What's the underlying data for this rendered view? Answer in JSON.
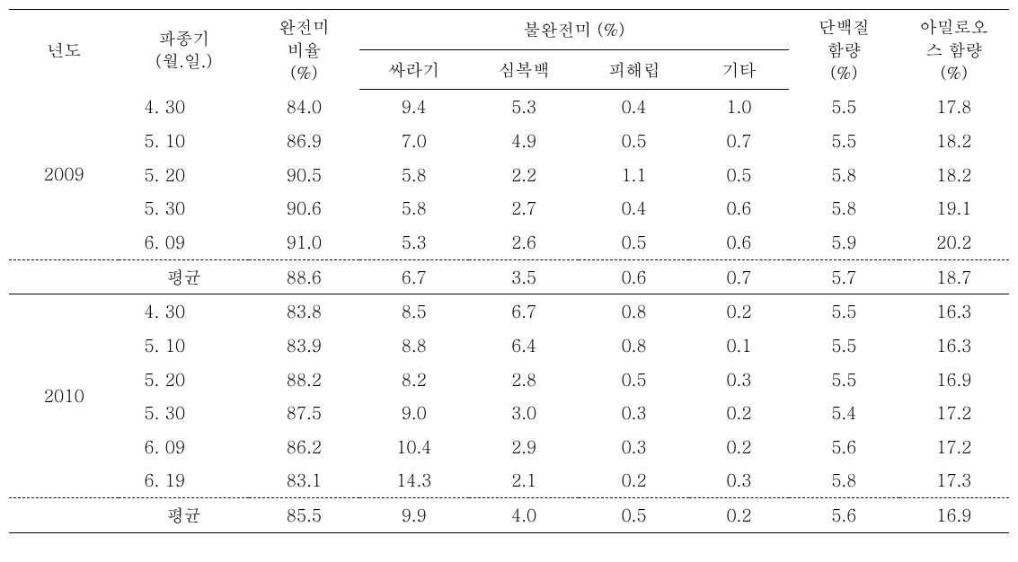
{
  "headers": {
    "year": "년도",
    "sowing": "파종기\n(월.일.)",
    "complete": "완전미\n비율\n(%)",
    "incomplete_group": "불완전미 (%)",
    "sub1": "싸라기",
    "sub2": "심복백",
    "sub3": "피해립",
    "sub4": "기타",
    "protein": "단백질\n함량\n(%)",
    "amylose": "아밀로오\n스 함량\n(%)"
  },
  "years": {
    "y2009": "2009",
    "y2010": "2010"
  },
  "avg_label": "평균",
  "rows_2009": [
    {
      "date": "4. 30",
      "complete": "84.0",
      "s1": "9.4",
      "s2": "5.3",
      "s3": "0.4",
      "s4": "1.0",
      "prot": "5.5",
      "amyl": "17.8"
    },
    {
      "date": "5. 10",
      "complete": "86.9",
      "s1": "7.0",
      "s2": "4.9",
      "s3": "0.5",
      "s4": "0.7",
      "prot": "5.5",
      "amyl": "18.2"
    },
    {
      "date": "5. 20",
      "complete": "90.5",
      "s1": "5.8",
      "s2": "2.2",
      "s3": "1.1",
      "s4": "0.5",
      "prot": "5.8",
      "amyl": "18.2"
    },
    {
      "date": "5. 30",
      "complete": "90.6",
      "s1": "5.8",
      "s2": "2.7",
      "s3": "0.4",
      "s4": "0.6",
      "prot": "5.8",
      "amyl": "19.1"
    },
    {
      "date": "6. 09",
      "complete": "91.0",
      "s1": "5.3",
      "s2": "2.6",
      "s3": "0.5",
      "s4": "0.6",
      "prot": "5.9",
      "amyl": "20.2"
    }
  ],
  "avg_2009": {
    "complete": "88.6",
    "s1": "6.7",
    "s2": "3.5",
    "s3": "0.6",
    "s4": "0.7",
    "prot": "5.7",
    "amyl": "18.7"
  },
  "rows_2010": [
    {
      "date": "4. 30",
      "complete": "83.8",
      "s1": "8.5",
      "s2": "6.7",
      "s3": "0.8",
      "s4": "0.2",
      "prot": "5.5",
      "amyl": "16.3"
    },
    {
      "date": "5. 10",
      "complete": "83.9",
      "s1": "8.8",
      "s2": "6.4",
      "s3": "0.8",
      "s4": "0.1",
      "prot": "5.5",
      "amyl": "16.3"
    },
    {
      "date": "5. 20",
      "complete": "88.2",
      "s1": "8.2",
      "s2": "2.8",
      "s3": "0.5",
      "s4": "0.3",
      "prot": "5.5",
      "amyl": "16.9"
    },
    {
      "date": "5. 30",
      "complete": "87.5",
      "s1": "9.0",
      "s2": "3.0",
      "s3": "0.3",
      "s4": "0.2",
      "prot": "5.4",
      "amyl": "17.2"
    },
    {
      "date": "6. 09",
      "complete": "86.2",
      "s1": "10.4",
      "s2": "2.9",
      "s3": "0.3",
      "s4": "0.2",
      "prot": "5.6",
      "amyl": "17.2"
    },
    {
      "date": "6. 19",
      "complete": "83.1",
      "s1": "14.3",
      "s2": "2.1",
      "s3": "0.2",
      "s4": "0.3",
      "prot": "5.8",
      "amyl": "17.3"
    }
  ],
  "avg_2010": {
    "complete": "85.5",
    "s1": "9.9",
    "s2": "4.0",
    "s3": "0.5",
    "s4": "0.2",
    "prot": "5.6",
    "amyl": "16.9"
  }
}
